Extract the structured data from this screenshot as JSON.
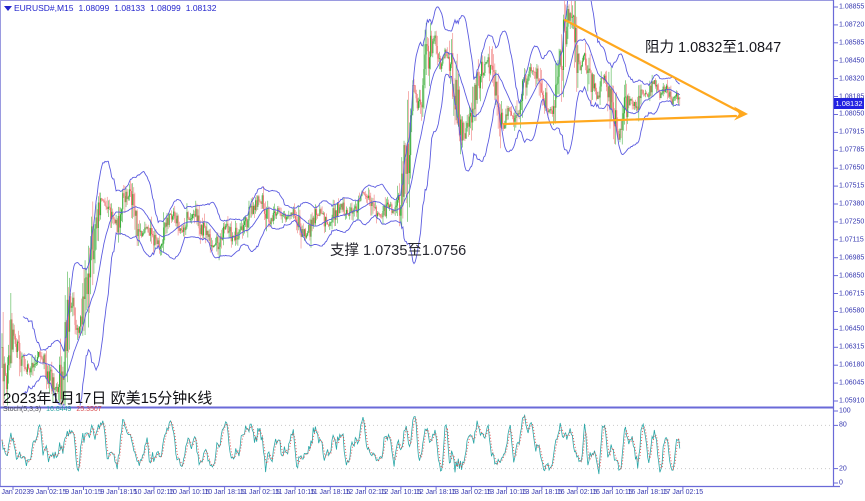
{
  "header": {
    "symbol": "EURUSD#,M15",
    "open": "1.08099",
    "high": "1.08133",
    "low": "1.08099",
    "close": "1.08132"
  },
  "annotations": {
    "resistance": "阻力 1.0832至1.0847",
    "support": "支撑 1.0735至1.0756",
    "caption": "2023年1月17日 欧美15分钟K线"
  },
  "stoch_panel": {
    "label": "Stoch(5,3,3)",
    "k_value": "16.8449",
    "d_value": "25.3507"
  },
  "colors": {
    "candle_up": "#3BAE3B",
    "candle_down": "#EE7272",
    "bands": "#5C5CE0",
    "trend": "#FFA81E",
    "stoch_k": "#2AA7A7",
    "stoch_d": "#E24B4B",
    "frame": "#6A6AD8",
    "frame_light": "#9A9AE0",
    "axis_text": "#3638B0",
    "grid_dotted": "#C9C9C9",
    "price_tag_bg": "#2222E2"
  },
  "chart_data": {
    "type": "candlestick",
    "symbol": "EURUSD#",
    "timeframe": "M15",
    "title": "2023年1月17日 欧美15分钟K线",
    "last_ohlc": {
      "open": 1.08099,
      "high": 1.08133,
      "low": 1.08099,
      "close": 1.08132
    },
    "current_price": "1.08132",
    "ylim": [
      1.0585,
      1.0889
    ],
    "price_axis_ticks": [
      "1.08855",
      "1.08720",
      "1.08585",
      "1.08450",
      "1.08320",
      "1.08185",
      "1.08050",
      "1.07915",
      "1.07785",
      "1.07650",
      "1.07515",
      "1.07380",
      "1.07250",
      "1.07115",
      "1.06985",
      "1.06850",
      "1.06715",
      "1.06580",
      "1.06450",
      "1.06315",
      "1.06180",
      "1.06045",
      "1.05910"
    ],
    "time_axis_ticks": [
      "6 Jan 2023",
      "9 Jan 02:15",
      "9 Jan 10:15",
      "9 Jan 18:15",
      "10 Jan 02:15",
      "10 Jan 10:15",
      "10 Jan 18:15",
      "11 Jan 02:15",
      "11 Jan 10:15",
      "11 Jan 18:15",
      "12 Jan 02:15",
      "12 Jan 10:15",
      "12 Jan 18:15",
      "13 Jan 02:15",
      "13 Jan 10:15",
      "13 Jan 18:15",
      "16 Jan 02:15",
      "16 Jan 10:15",
      "16 Jan 18:15",
      "17 Jan 02:15"
    ],
    "stoch_axis_ticks": [
      "100",
      "80",
      "20",
      "0"
    ],
    "stoch_levels": [
      80,
      20
    ],
    "support_zone": [
      1.0735,
      1.0756
    ],
    "resistance_zone": [
      1.0832,
      1.0847
    ],
    "bollinger": {
      "period": 20,
      "deviation": 2.3
    },
    "stochastic": {
      "k_period": 5,
      "slowing": 3,
      "d_period": 3,
      "last_k": 16.8449,
      "last_d": 25.3507
    },
    "wedge": {
      "upper": [
        [
          565,
          20
        ],
        [
          740,
          112
        ]
      ],
      "lower": [
        [
          504,
          124
        ],
        [
          736,
          116
        ]
      ],
      "arrow_tip": [
        748,
        114
      ]
    },
    "price_path": [
      [
        0,
        1.0652
      ],
      [
        3,
        1.0622
      ],
      [
        6,
        1.0597
      ],
      [
        10,
        1.0633
      ],
      [
        14,
        1.0642
      ],
      [
        18,
        1.063
      ],
      [
        24,
        1.0618
      ],
      [
        30,
        1.0615
      ],
      [
        35,
        1.0622
      ],
      [
        40,
        1.0628
      ],
      [
        46,
        1.0616
      ],
      [
        52,
        1.0605
      ],
      [
        57,
        1.0598
      ],
      [
        62,
        1.0612
      ],
      [
        68,
        1.0655
      ],
      [
        73,
        1.0662
      ],
      [
        78,
        1.0641
      ],
      [
        83,
        1.0652
      ],
      [
        88,
        1.0688
      ],
      [
        93,
        1.0715
      ],
      [
        98,
        1.073
      ],
      [
        104,
        1.0741
      ],
      [
        110,
        1.0728
      ],
      [
        117,
        1.0722
      ],
      [
        123,
        1.0738
      ],
      [
        130,
        1.0746
      ],
      [
        136,
        1.0728
      ],
      [
        141,
        1.0714
      ],
      [
        147,
        1.0723
      ],
      [
        153,
        1.0712
      ],
      [
        160,
        1.0708
      ],
      [
        167,
        1.0725
      ],
      [
        174,
        1.073
      ],
      [
        180,
        1.0718
      ],
      [
        187,
        1.0727
      ],
      [
        194,
        1.0733
      ],
      [
        200,
        1.0722
      ],
      [
        207,
        1.0716
      ],
      [
        213,
        1.0705
      ],
      [
        220,
        1.0714
      ],
      [
        226,
        1.0723
      ],
      [
        232,
        1.0712
      ],
      [
        240,
        1.072
      ],
      [
        248,
        1.0728
      ],
      [
        255,
        1.0738
      ],
      [
        262,
        1.0742
      ],
      [
        270,
        1.0726
      ],
      [
        278,
        1.0734
      ],
      [
        286,
        1.0728
      ],
      [
        294,
        1.0732
      ],
      [
        300,
        1.0722
      ],
      [
        306,
        1.0714
      ],
      [
        313,
        1.0726
      ],
      [
        320,
        1.0733
      ],
      [
        327,
        1.0722
      ],
      [
        334,
        1.073
      ],
      [
        341,
        1.0738
      ],
      [
        348,
        1.0728
      ],
      [
        355,
        1.0736
      ],
      [
        362,
        1.0746
      ],
      [
        369,
        1.0742
      ],
      [
        375,
        1.0734
      ],
      [
        382,
        1.0728
      ],
      [
        388,
        1.0738
      ],
      [
        394,
        1.0732
      ],
      [
        400,
        1.0742
      ],
      [
        405,
        1.0762
      ],
      [
        409,
        1.08
      ],
      [
        413,
        1.0828
      ],
      [
        417,
        1.0812
      ],
      [
        422,
        1.0822
      ],
      [
        427,
        1.0846
      ],
      [
        432,
        1.0858
      ],
      [
        436,
        1.0864
      ],
      [
        440,
        1.0842
      ],
      [
        445,
        1.0852
      ],
      [
        450,
        1.0844
      ],
      [
        455,
        1.0826
      ],
      [
        460,
        1.0802
      ],
      [
        465,
        1.0788
      ],
      [
        470,
        1.0802
      ],
      [
        475,
        1.082
      ],
      [
        481,
        1.0836
      ],
      [
        487,
        1.0846
      ],
      [
        492,
        1.0836
      ],
      [
        497,
        1.082
      ],
      [
        503,
        1.0794
      ],
      [
        508,
        1.081
      ],
      [
        514,
        1.08
      ],
      [
        520,
        1.0818
      ],
      [
        526,
        1.0832
      ],
      [
        533,
        1.084
      ],
      [
        539,
        1.0828
      ],
      [
        545,
        1.0816
      ],
      [
        551,
        1.0808
      ],
      [
        557,
        1.0826
      ],
      [
        562,
        1.0848
      ],
      [
        567,
        1.0874
      ],
      [
        571,
        1.088
      ],
      [
        575,
        1.0856
      ],
      [
        580,
        1.084
      ],
      [
        584,
        1.085
      ],
      [
        591,
        1.083
      ],
      [
        597,
        1.0818
      ],
      [
        603,
        1.0834
      ],
      [
        609,
        1.0824
      ],
      [
        614,
        1.0808
      ],
      [
        619,
        1.0786
      ],
      [
        624,
        1.0806
      ],
      [
        630,
        1.0818
      ],
      [
        636,
        1.081
      ],
      [
        642,
        1.0824
      ],
      [
        648,
        1.0818
      ],
      [
        654,
        1.083
      ],
      [
        660,
        1.082
      ],
      [
        666,
        1.0826
      ],
      [
        672,
        1.0816
      ],
      [
        677,
        1.082
      ],
      [
        680,
        1.08132
      ]
    ]
  }
}
